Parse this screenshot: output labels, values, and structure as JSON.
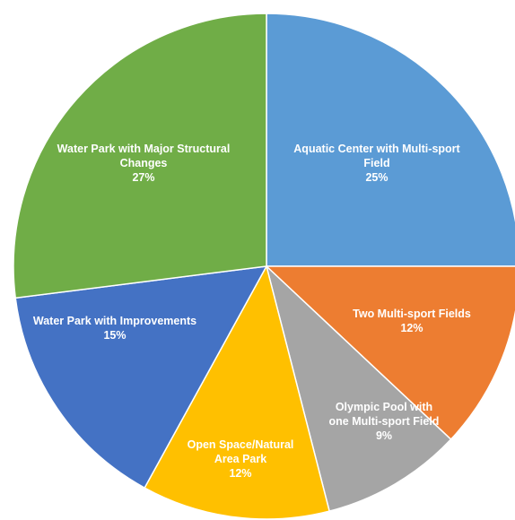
{
  "chart_data": {
    "type": "pie",
    "start_angle_deg": 0,
    "direction": "clockwise",
    "slices": [
      {
        "label_lines": [
          "Aquatic Center with Multi-sport",
          "Field"
        ],
        "pct_text": "25%",
        "value": 25,
        "color": "#5B9BD5"
      },
      {
        "label_lines": [
          "Two Multi-sport Fields"
        ],
        "pct_text": "12%",
        "value": 12,
        "color": "#ED7D31"
      },
      {
        "label_lines": [
          "Olympic Pool with",
          "one Multi-sport Field"
        ],
        "pct_text": "9%",
        "value": 9,
        "color": "#A5A5A5"
      },
      {
        "label_lines": [
          "Open Space/Natural",
          "Area Park"
        ],
        "pct_text": "12%",
        "value": 12,
        "color": "#FFC000"
      },
      {
        "label_lines": [
          "Water Park with Improvements"
        ],
        "pct_text": "15%",
        "value": 15,
        "color": "#4472C4"
      },
      {
        "label_lines": [
          "Water Park with Major Structural",
          "Changes"
        ],
        "pct_text": "27%",
        "value": 27,
        "color": "#70AD47"
      }
    ]
  }
}
